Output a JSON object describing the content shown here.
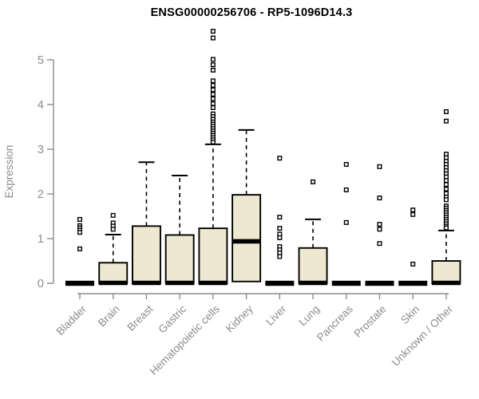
{
  "chart_data": {
    "type": "boxplot",
    "title": "ENSG00000256706 - RP5-1096D14.3",
    "ylabel": "Expression",
    "xlabel": "",
    "ylim": [
      0,
      5.7
    ],
    "yticks": [
      0,
      1,
      2,
      3,
      4,
      5
    ],
    "grid": false,
    "legend": "none",
    "colors": {
      "box_fill": "#EDE8CF",
      "box_stroke": "#000000",
      "median": "#000000",
      "whisker": "#000000",
      "axis": "#8C8C8C",
      "tick_label": "#8C8C8C",
      "title": "#000000",
      "background": "#ffffff",
      "outlier_fill": "#ffffff",
      "outlier_stroke": "#000000"
    },
    "categories": [
      "Bladder",
      "Brain",
      "Breast",
      "Gastric",
      "Hematopoietic cells",
      "Kidney",
      "Liver",
      "Lung",
      "Pancreas",
      "Prostate",
      "Skin",
      "Unknown / Other"
    ],
    "boxes": [
      {
        "name": "Bladder",
        "flat": true,
        "q1": 0,
        "median": 0,
        "q3": 0,
        "whisker_high": 0,
        "outliers": [
          1.43,
          1.29,
          1.24,
          1.19,
          1.14,
          0.77
        ]
      },
      {
        "name": "Brain",
        "flat": false,
        "q1": 0,
        "median": 0,
        "q3": 0.46,
        "whisker_high": 1.09,
        "outliers": [
          1.52,
          1.35,
          1.28,
          1.21
        ]
      },
      {
        "name": "Breast",
        "flat": false,
        "q1": 0,
        "median": 0,
        "q3": 1.28,
        "whisker_high": 2.71,
        "outliers": []
      },
      {
        "name": "Gastric",
        "flat": false,
        "q1": 0,
        "median": 0,
        "q3": 1.08,
        "whisker_high": 2.41,
        "outliers": []
      },
      {
        "name": "Hematopoietic cells",
        "flat": false,
        "q1": 0,
        "median": 0,
        "q3": 1.23,
        "whisker_high": 3.11,
        "outliers": [
          5.64,
          5.49,
          5.01,
          4.89,
          4.77,
          4.53,
          4.43,
          4.33,
          4.23,
          4.13,
          4.02,
          3.93,
          3.79,
          3.73,
          3.67,
          3.61,
          3.56,
          3.51,
          3.46,
          3.41,
          3.36,
          3.31,
          3.26,
          3.21,
          3.16
        ]
      },
      {
        "name": "Kidney",
        "flat": false,
        "q1": 0.04,
        "median": 0.93,
        "q3": 1.98,
        "whisker_high": 3.43,
        "outliers": []
      },
      {
        "name": "Liver",
        "flat": true,
        "q1": 0,
        "median": 0,
        "q3": 0,
        "whisker_high": 0,
        "outliers": [
          2.8,
          1.48,
          1.23,
          1.1,
          1.02,
          0.82,
          0.75,
          0.68,
          0.6
        ]
      },
      {
        "name": "Lung",
        "flat": false,
        "q1": 0,
        "median": 0,
        "q3": 0.79,
        "whisker_high": 1.43,
        "outliers": [
          2.27
        ]
      },
      {
        "name": "Pancreas",
        "flat": true,
        "q1": 0,
        "median": 0,
        "q3": 0,
        "whisker_high": 0,
        "outliers": [
          2.66,
          2.09,
          1.36
        ]
      },
      {
        "name": "Prostate",
        "flat": true,
        "q1": 0,
        "median": 0,
        "q3": 0,
        "whisker_high": 0,
        "outliers": [
          2.61,
          1.91,
          1.32,
          1.21,
          0.89
        ]
      },
      {
        "name": "Skin",
        "flat": true,
        "q1": 0,
        "median": 0,
        "q3": 0,
        "whisker_high": 0,
        "outliers": [
          1.64,
          1.54,
          0.43
        ]
      },
      {
        "name": "Unknown / Other",
        "flat": false,
        "q1": 0,
        "median": 0,
        "q3": 0.5,
        "whisker_high": 1.18,
        "outliers": [
          3.84,
          3.63,
          2.89,
          2.81,
          2.73,
          2.66,
          2.59,
          2.52,
          2.45,
          2.38,
          2.3,
          2.21,
          2.11,
          2.01,
          1.93,
          1.87,
          1.73,
          1.68,
          1.63,
          1.58,
          1.53,
          1.48,
          1.43,
          1.38,
          1.33,
          1.28,
          1.24
        ]
      }
    ]
  }
}
